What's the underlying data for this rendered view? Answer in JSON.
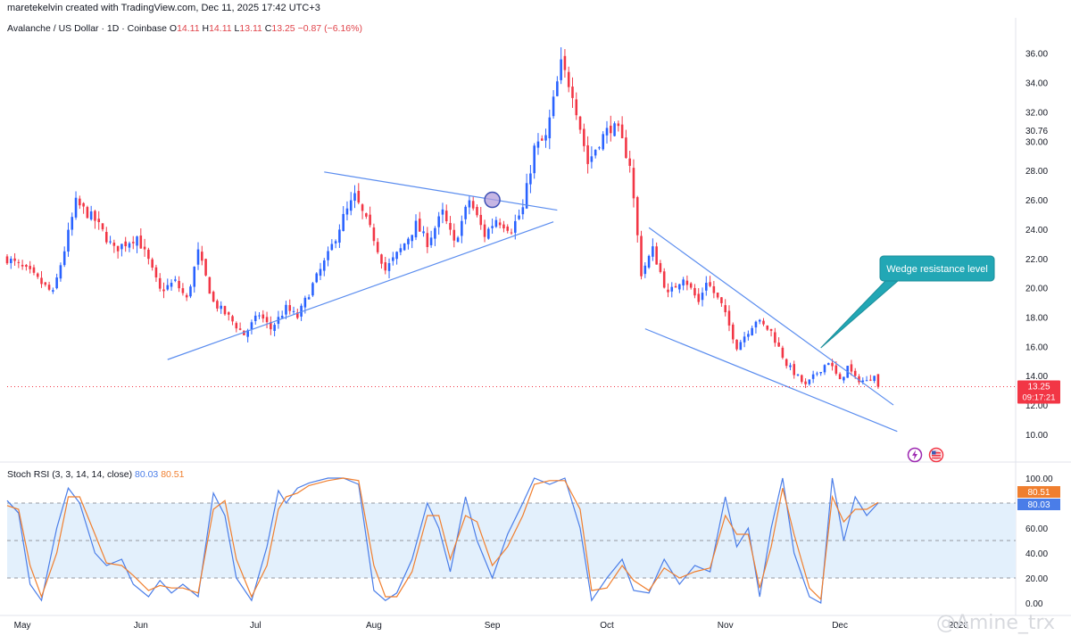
{
  "attribution": "maretekelvin created with TradingView.com, Dec 11, 2025 17:42 UTC+3",
  "header": {
    "symbol": "Avalanche / US Dollar · 1D · Coinbase",
    "o_label": "O",
    "o": "14.11",
    "h_label": "H",
    "h": "14.11",
    "l_label": "L",
    "l": "13.11",
    "c_label": "C",
    "c": "13.25",
    "change": "−0.87 (−6.16%)"
  },
  "stoch_header": {
    "label": "Stoch RSI (3, 3, 14, 14, close)",
    "k": "80.03",
    "d": "80.51"
  },
  "price_tag": {
    "value": "13.25",
    "countdown": "09:17:21"
  },
  "annotation": "Wedge resistance level",
  "watermark": "@Amine_trx",
  "colors": {
    "up": "#2962ff",
    "down": "#f23645",
    "trendline": "#5b8def",
    "callout_bg": "#22a7b5",
    "stoch_k": "#4a7de8",
    "stoch_d": "#f07f2f",
    "band": "#e3f0fc"
  },
  "icons": [
    "lightning-icon",
    "us-flag-icon"
  ],
  "chart_data": [
    {
      "type": "candlestick",
      "title": "Avalanche / US Dollar · 1D · Coinbase",
      "ylim": [
        8.9,
        37.2
      ],
      "y_ticks": [
        10.0,
        12.0,
        14.0,
        16.0,
        18.0,
        20.0,
        22.0,
        24.0,
        26.0,
        28.0,
        30.0,
        30.76,
        32.0,
        34.0,
        36.0
      ],
      "x_ticks": [
        {
          "label": "May",
          "date": "2025-05-01"
        },
        {
          "label": "Jun",
          "date": "2025-06-01"
        },
        {
          "label": "Jul",
          "date": "2025-07-01"
        },
        {
          "label": "Aug",
          "date": "2025-08-01"
        },
        {
          "label": "Sep",
          "date": "2025-09-01"
        },
        {
          "label": "Oct",
          "date": "2025-10-01"
        },
        {
          "label": "Nov",
          "date": "2025-11-01"
        },
        {
          "label": "Dec",
          "date": "2025-12-01"
        },
        {
          "label": "2026",
          "date": "2026-01-01"
        }
      ],
      "close_path": [
        [
          "2025-04-27",
          22.0
        ],
        [
          "2025-05-03",
          21.0
        ],
        [
          "2025-05-09",
          19.6
        ],
        [
          "2025-05-12",
          22.6
        ],
        [
          "2025-05-15",
          25.8
        ],
        [
          "2025-05-20",
          24.6
        ],
        [
          "2025-05-25",
          22.6
        ],
        [
          "2025-05-31",
          23.5
        ],
        [
          "2025-06-03",
          21.8
        ],
        [
          "2025-06-06",
          19.8
        ],
        [
          "2025-06-10",
          20.4
        ],
        [
          "2025-06-13",
          19.2
        ],
        [
          "2025-06-16",
          22.4
        ],
        [
          "2025-06-20",
          19.0
        ],
        [
          "2025-06-24",
          18.0
        ],
        [
          "2025-06-28",
          16.8
        ],
        [
          "2025-07-02",
          18.2
        ],
        [
          "2025-07-05",
          17.2
        ],
        [
          "2025-07-09",
          18.6
        ],
        [
          "2025-07-12",
          18.0
        ],
        [
          "2025-07-16",
          20.2
        ],
        [
          "2025-07-20",
          22.2
        ],
        [
          "2025-07-24",
          24.8
        ],
        [
          "2025-07-27",
          26.2
        ],
        [
          "2025-08-01",
          23.4
        ],
        [
          "2025-08-04",
          21.2
        ],
        [
          "2025-08-08",
          22.6
        ],
        [
          "2025-08-12",
          24.3
        ],
        [
          "2025-08-15",
          23.1
        ],
        [
          "2025-08-19",
          25.1
        ],
        [
          "2025-08-22",
          23.0
        ],
        [
          "2025-08-26",
          26.0
        ],
        [
          "2025-08-30",
          23.6
        ],
        [
          "2025-09-02",
          24.7
        ],
        [
          "2025-09-06",
          24.0
        ],
        [
          "2025-09-09",
          25.4
        ],
        [
          "2025-09-12",
          29.5
        ],
        [
          "2025-09-15",
          30.2
        ],
        [
          "2025-09-19",
          35.2
        ],
        [
          "2025-09-22",
          33.4
        ],
        [
          "2025-09-26",
          28.5
        ],
        [
          "2025-09-29",
          30.0
        ],
        [
          "2025-10-02",
          31.0
        ],
        [
          "2025-10-04",
          30.6
        ],
        [
          "2025-10-07",
          28.5
        ],
        [
          "2025-10-10",
          21.0
        ],
        [
          "2025-10-13",
          22.6
        ],
        [
          "2025-10-17",
          19.5
        ],
        [
          "2025-10-21",
          20.8
        ],
        [
          "2025-10-25",
          19.0
        ],
        [
          "2025-10-27",
          20.5
        ],
        [
          "2025-10-31",
          18.8
        ],
        [
          "2025-11-04",
          16.0
        ],
        [
          "2025-11-09",
          17.8
        ],
        [
          "2025-11-13",
          17.0
        ],
        [
          "2025-11-17",
          14.8
        ],
        [
          "2025-11-22",
          13.3
        ],
        [
          "2025-11-25",
          14.2
        ],
        [
          "2025-11-28",
          15.0
        ],
        [
          "2025-12-01",
          13.6
        ],
        [
          "2025-12-03",
          14.6
        ],
        [
          "2025-12-05",
          13.8
        ],
        [
          "2025-12-08",
          13.6
        ],
        [
          "2025-12-10",
          14.2
        ],
        [
          "2025-12-11",
          13.25
        ]
      ],
      "last_candle": {
        "date": "2025-12-11",
        "open": 14.11,
        "high": 14.11,
        "low": 13.11,
        "close": 13.25
      },
      "trendlines": [
        {
          "name": "triangle-resistance",
          "p1": [
            "2025-07-19",
            27.9
          ],
          "p2": [
            "2025-09-18",
            25.3
          ]
        },
        {
          "name": "triangle-support",
          "p1": [
            "2025-06-08",
            15.1
          ],
          "p2": [
            "2025-09-17",
            24.5
          ]
        },
        {
          "name": "wedge-resistance",
          "p1": [
            "2025-10-12",
            24.1
          ],
          "p2": [
            "2025-12-15",
            12.0
          ]
        },
        {
          "name": "wedge-support",
          "p1": [
            "2025-10-11",
            17.2
          ],
          "p2": [
            "2025-12-16",
            10.2
          ]
        }
      ],
      "breakout_marker": {
        "date": "2025-09-01",
        "price": 26.0
      },
      "callout": {
        "text": "Wedge resistance level",
        "anchor": [
          "2025-11-26",
          15.9
        ]
      }
    },
    {
      "type": "line",
      "title": "Stoch RSI (3, 3, 14, 14, close)",
      "ylim": [
        -5,
        105
      ],
      "y_ticks": [
        0.0,
        20.0,
        40.0,
        60.0,
        80.0,
        100.0
      ],
      "band": [
        20,
        80
      ],
      "midline": 50,
      "series": [
        {
          "name": "K",
          "last": 80.03,
          "points": [
            [
              "2025-04-27",
              82
            ],
            [
              "2025-04-30",
              72
            ],
            [
              "2025-05-03",
              15
            ],
            [
              "2025-05-06",
              2
            ],
            [
              "2025-05-10",
              60
            ],
            [
              "2025-05-13",
              92
            ],
            [
              "2025-05-16",
              80
            ],
            [
              "2025-05-20",
              40
            ],
            [
              "2025-05-23",
              30
            ],
            [
              "2025-05-27",
              35
            ],
            [
              "2025-05-30",
              15
            ],
            [
              "2025-06-03",
              5
            ],
            [
              "2025-06-06",
              18
            ],
            [
              "2025-06-09",
              8
            ],
            [
              "2025-06-12",
              15
            ],
            [
              "2025-06-16",
              5
            ],
            [
              "2025-06-20",
              88
            ],
            [
              "2025-06-23",
              70
            ],
            [
              "2025-06-26",
              20
            ],
            [
              "2025-06-30",
              2
            ],
            [
              "2025-07-04",
              45
            ],
            [
              "2025-07-07",
              90
            ],
            [
              "2025-07-09",
              80
            ],
            [
              "2025-07-12",
              92
            ],
            [
              "2025-07-15",
              96
            ],
            [
              "2025-07-20",
              100
            ],
            [
              "2025-07-24",
              100
            ],
            [
              "2025-07-28",
              95
            ],
            [
              "2025-08-01",
              10
            ],
            [
              "2025-08-04",
              2
            ],
            [
              "2025-08-07",
              8
            ],
            [
              "2025-08-11",
              35
            ],
            [
              "2025-08-15",
              80
            ],
            [
              "2025-08-18",
              60
            ],
            [
              "2025-08-21",
              25
            ],
            [
              "2025-08-25",
              85
            ],
            [
              "2025-08-28",
              50
            ],
            [
              "2025-09-01",
              20
            ],
            [
              "2025-09-05",
              55
            ],
            [
              "2025-09-09",
              80
            ],
            [
              "2025-09-12",
              100
            ],
            [
              "2025-09-16",
              95
            ],
            [
              "2025-09-20",
              100
            ],
            [
              "2025-09-24",
              60
            ],
            [
              "2025-09-27",
              2
            ],
            [
              "2025-10-01",
              20
            ],
            [
              "2025-10-05",
              35
            ],
            [
              "2025-10-08",
              10
            ],
            [
              "2025-10-12",
              8
            ],
            [
              "2025-10-16",
              35
            ],
            [
              "2025-10-20",
              15
            ],
            [
              "2025-10-24",
              30
            ],
            [
              "2025-10-28",
              25
            ],
            [
              "2025-11-01",
              85
            ],
            [
              "2025-11-04",
              45
            ],
            [
              "2025-11-07",
              60
            ],
            [
              "2025-11-10",
              5
            ],
            [
              "2025-11-13",
              60
            ],
            [
              "2025-11-16",
              100
            ],
            [
              "2025-11-19",
              40
            ],
            [
              "2025-11-23",
              5
            ],
            [
              "2025-11-26",
              0
            ],
            [
              "2025-11-29",
              100
            ],
            [
              "2025-12-02",
              50
            ],
            [
              "2025-12-05",
              85
            ],
            [
              "2025-12-08",
              70
            ],
            [
              "2025-12-11",
              80.03
            ]
          ]
        },
        {
          "name": "D",
          "last": 80.51,
          "points": [
            [
              "2025-04-27",
              78
            ],
            [
              "2025-04-30",
              75
            ],
            [
              "2025-05-03",
              30
            ],
            [
              "2025-05-06",
              5
            ],
            [
              "2025-05-10",
              40
            ],
            [
              "2025-05-13",
              85
            ],
            [
              "2025-05-16",
              85
            ],
            [
              "2025-05-20",
              55
            ],
            [
              "2025-05-23",
              32
            ],
            [
              "2025-05-27",
              30
            ],
            [
              "2025-05-30",
              22
            ],
            [
              "2025-06-03",
              10
            ],
            [
              "2025-06-06",
              14
            ],
            [
              "2025-06-09",
              12
            ],
            [
              "2025-06-12",
              12
            ],
            [
              "2025-06-16",
              8
            ],
            [
              "2025-06-20",
              75
            ],
            [
              "2025-06-23",
              82
            ],
            [
              "2025-06-26",
              35
            ],
            [
              "2025-06-30",
              5
            ],
            [
              "2025-07-04",
              30
            ],
            [
              "2025-07-07",
              75
            ],
            [
              "2025-07-09",
              85
            ],
            [
              "2025-07-12",
              88
            ],
            [
              "2025-07-15",
              94
            ],
            [
              "2025-07-20",
              98
            ],
            [
              "2025-07-24",
              100
            ],
            [
              "2025-07-28",
              98
            ],
            [
              "2025-08-01",
              30
            ],
            [
              "2025-08-04",
              5
            ],
            [
              "2025-08-07",
              5
            ],
            [
              "2025-08-11",
              25
            ],
            [
              "2025-08-15",
              70
            ],
            [
              "2025-08-18",
              70
            ],
            [
              "2025-08-21",
              35
            ],
            [
              "2025-08-25",
              70
            ],
            [
              "2025-08-28",
              65
            ],
            [
              "2025-09-01",
              30
            ],
            [
              "2025-09-05",
              45
            ],
            [
              "2025-09-09",
              70
            ],
            [
              "2025-09-12",
              95
            ],
            [
              "2025-09-16",
              98
            ],
            [
              "2025-09-20",
              98
            ],
            [
              "2025-09-24",
              75
            ],
            [
              "2025-09-27",
              10
            ],
            [
              "2025-10-01",
              12
            ],
            [
              "2025-10-05",
              30
            ],
            [
              "2025-10-08",
              18
            ],
            [
              "2025-10-12",
              10
            ],
            [
              "2025-10-16",
              28
            ],
            [
              "2025-10-20",
              20
            ],
            [
              "2025-10-24",
              25
            ],
            [
              "2025-10-28",
              28
            ],
            [
              "2025-11-01",
              70
            ],
            [
              "2025-11-04",
              55
            ],
            [
              "2025-11-07",
              55
            ],
            [
              "2025-11-10",
              12
            ],
            [
              "2025-11-13",
              45
            ],
            [
              "2025-11-16",
              92
            ],
            [
              "2025-11-19",
              55
            ],
            [
              "2025-11-23",
              12
            ],
            [
              "2025-11-26",
              3
            ],
            [
              "2025-11-29",
              85
            ],
            [
              "2025-12-02",
              65
            ],
            [
              "2025-12-05",
              75
            ],
            [
              "2025-12-08",
              75
            ],
            [
              "2025-12-11",
              80.51
            ]
          ]
        }
      ]
    }
  ]
}
